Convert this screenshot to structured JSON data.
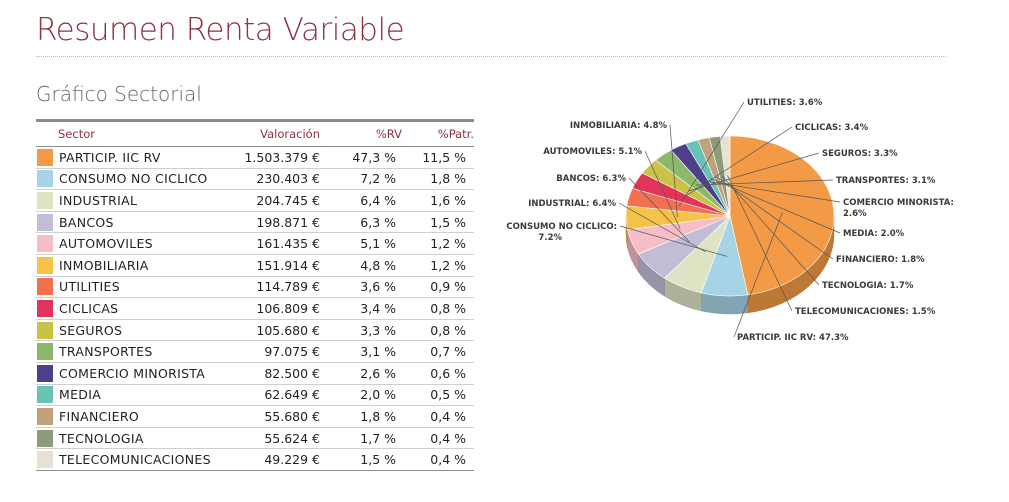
{
  "page": {
    "title": "Resumen Renta Variable",
    "subtitle": "Gráfico Sectorial"
  },
  "table": {
    "headers": {
      "sector": "Sector",
      "valoracion": "Valoración",
      "rv": "%RV",
      "patr": "%Patr."
    },
    "rows": [
      {
        "sector": "PARTICIP. IIC RV",
        "valoracion": "1.503.379 €",
        "rv": "47,3 %",
        "patr": "11,5 %",
        "color": "#f29a45"
      },
      {
        "sector": "CONSUMO NO CICLICO",
        "valoracion": "230.403 €",
        "rv": "7,2 %",
        "patr": "1,8 %",
        "color": "#a6d3e5"
      },
      {
        "sector": "INDUSTRIAL",
        "valoracion": "204.745 €",
        "rv": "6,4 %",
        "patr": "1,6 %",
        "color": "#dde4c4"
      },
      {
        "sector": "BANCOS",
        "valoracion": "198.871 €",
        "rv": "6,3 %",
        "patr": "1,5 %",
        "color": "#c3bcd6"
      },
      {
        "sector": "AUTOMOVILES",
        "valoracion": "161.435 €",
        "rv": "5,1 %",
        "patr": "1,2 %",
        "color": "#f6bcc8"
      },
      {
        "sector": "INMOBILIARIA",
        "valoracion": "151.914 €",
        "rv": "4,8 %",
        "patr": "1,2 %",
        "color": "#f5c24a"
      },
      {
        "sector": "UTILITIES",
        "valoracion": "114.789 €",
        "rv": "3,6 %",
        "patr": "0,9 %",
        "color": "#f26f4f"
      },
      {
        "sector": "CICLICAS",
        "valoracion": "106.809 €",
        "rv": "3,4 %",
        "patr": "0,8 %",
        "color": "#e2345a"
      },
      {
        "sector": "SEGUROS",
        "valoracion": "105.680 €",
        "rv": "3,3 %",
        "patr": "0,8 %",
        "color": "#c9c248"
      },
      {
        "sector": "TRANSPORTES",
        "valoracion": "97.075 €",
        "rv": "3,1 %",
        "patr": "0,7 %",
        "color": "#8cb86c"
      },
      {
        "sector": "COMERCIO MINORISTA",
        "valoracion": "82.500 €",
        "rv": "2,6 %",
        "patr": "0,6 %",
        "color": "#4e3f8a"
      },
      {
        "sector": "MEDIA",
        "valoracion": "62.649 €",
        "rv": "2,0 %",
        "patr": "0,5 %",
        "color": "#68c3b6"
      },
      {
        "sector": "FINANCIERO",
        "valoracion": "55.680 €",
        "rv": "1,8 %",
        "patr": "0,4 %",
        "color": "#c2a07c"
      },
      {
        "sector": "TECNOLOGIA",
        "valoracion": "55.624 €",
        "rv": "1,7 %",
        "patr": "0,4 %",
        "color": "#8f9a7b"
      },
      {
        "sector": "TELECOMUNICACIONES",
        "valoracion": "49.229 €",
        "rv": "1,5 %",
        "patr": "0,4 %",
        "color": "#e8e0d0"
      }
    ]
  },
  "chart_data": {
    "type": "pie",
    "title": "",
    "start_angle_deg": -90,
    "slices": [
      {
        "label": "PARTICIP. IIC RV: 47.3%",
        "value": 47.3,
        "color": "#f29a45"
      },
      {
        "label": "CONSUMO NO CICLICO: 7.2%",
        "value": 7.2,
        "color": "#a6d3e5"
      },
      {
        "label": "INDUSTRIAL: 6.4%",
        "value": 6.4,
        "color": "#dde4c4"
      },
      {
        "label": "BANCOS: 6.3%",
        "value": 6.3,
        "color": "#c3bcd6"
      },
      {
        "label": "AUTOMOVILES: 5.1%",
        "value": 5.1,
        "color": "#f6bcc8"
      },
      {
        "label": "INMOBILIARIA: 4.8%",
        "value": 4.8,
        "color": "#f5c24a"
      },
      {
        "label": "UTILITIES: 3.6%",
        "value": 3.6,
        "color": "#f26f4f"
      },
      {
        "label": "CICLICAS: 3.4%",
        "value": 3.4,
        "color": "#e2345a"
      },
      {
        "label": "SEGUROS: 3.3%",
        "value": 3.3,
        "color": "#c9c248"
      },
      {
        "label": "TRANSPORTES: 3.1%",
        "value": 3.1,
        "color": "#8cb86c"
      },
      {
        "label": "COMERCIO MINORISTA: 2.6%",
        "value": 2.6,
        "color": "#4e3f8a"
      },
      {
        "label": "MEDIA: 2.0%",
        "value": 2.0,
        "color": "#68c3b6"
      },
      {
        "label": "FINANCIERO: 1.8%",
        "value": 1.8,
        "color": "#c2a07c"
      },
      {
        "label": "TECNOLOGIA: 1.7%",
        "value": 1.7,
        "color": "#8f9a7b"
      },
      {
        "label": "TELECOMUNICACIONES: 1.5%",
        "value": 1.5,
        "color": "#e8e0d0"
      }
    ]
  }
}
